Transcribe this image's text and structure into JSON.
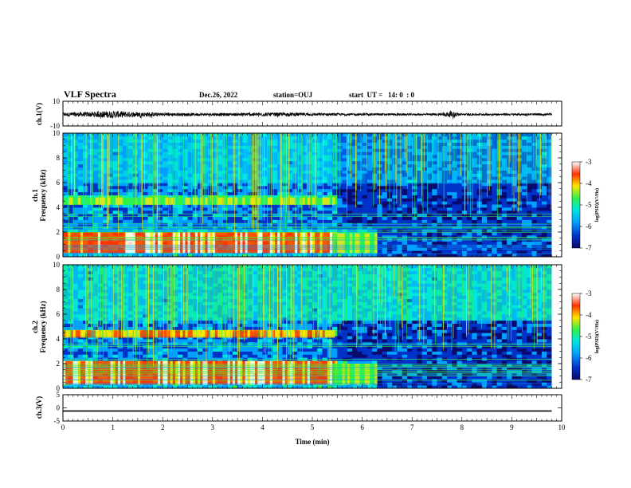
{
  "header": {
    "title": "VLF Spectra",
    "date": "Dec.26, 2022",
    "station": "station=OUJ",
    "start_ut": "start  UT =   14: 0  : 0"
  },
  "chart_data": [
    {
      "type": "line",
      "panel": "ch1-waveform",
      "ylabel": "ch.1(V)",
      "ylim": [
        -10,
        10
      ],
      "yticks": [
        10,
        -10
      ],
      "xlim": [
        0,
        10
      ],
      "note_values": "noisy waveform centered near 0 V, amplitude ~±1 V, larger bursts to ~±3 V before t=2.5 min and near t=7.8 min",
      "x": [
        0,
        0.5,
        1.0,
        1.5,
        2.0,
        2.5,
        3.0,
        3.5,
        4.0,
        4.5,
        5.0,
        5.5,
        6.0,
        6.5,
        7.0,
        7.5,
        7.8,
        8.0,
        8.5,
        9.0,
        9.5,
        9.8
      ],
      "y_envelope": [
        1.5,
        2.0,
        3.0,
        2.0,
        1.5,
        1.2,
        1.2,
        1.2,
        1.5,
        1.5,
        1.2,
        1.0,
        1.0,
        0.9,
        0.9,
        0.9,
        2.5,
        0.9,
        0.9,
        0.9,
        0.9,
        0.9
      ]
    },
    {
      "type": "heatmap",
      "panel": "ch1-spectrogram",
      "ylabel": "ch.1\nFrequency (kHz)",
      "ylim": [
        0,
        10
      ],
      "yticks": [
        0,
        2,
        4,
        6,
        8,
        10
      ],
      "xlim": [
        0,
        10
      ],
      "xticks": [
        0,
        1,
        2,
        3,
        4,
        5,
        6,
        7,
        8,
        9,
        10
      ],
      "colorbar": {
        "label": "log(PSD)(V²/Hz)",
        "range": [
          -7,
          -3
        ],
        "ticks": [
          -3,
          -4,
          -5,
          -6,
          -7
        ]
      },
      "data_end_min": 9.8,
      "features": [
        {
          "freq_kHz": [
            0.3,
            2.0
          ],
          "time_min": [
            0,
            5.4
          ],
          "level": -3.5
        },
        {
          "freq_kHz": [
            0.3,
            1.9
          ],
          "time_min": [
            5.4,
            6.25
          ],
          "level": -4.5
        },
        {
          "freq_kHz": [
            4.2,
            4.8
          ],
          "time_min": [
            0,
            5.4
          ],
          "level": -4.5
        },
        {
          "freq_kHz": [
            5.9,
            10.0
          ],
          "time_min": [
            0,
            9.8
          ],
          "level": -5.5
        }
      ]
    },
    {
      "type": "heatmap",
      "panel": "ch2-spectrogram",
      "ylabel": "ch.2\nFrequency (kHz)",
      "ylim": [
        0,
        10
      ],
      "yticks": [
        0,
        2,
        4,
        6,
        8,
        10
      ],
      "xlim": [
        0,
        10
      ],
      "xticks": [
        0,
        1,
        2,
        3,
        4,
        5,
        6,
        7,
        8,
        9,
        10
      ],
      "colorbar": {
        "label": "log(PSD)(V²/Hz)",
        "range": [
          -7,
          -3
        ],
        "ticks": [
          -3,
          -4,
          -5,
          -6,
          -7
        ]
      },
      "data_end_min": 9.8,
      "features": [
        {
          "freq_kHz": [
            0.3,
            2.2
          ],
          "time_min": [
            0,
            5.4
          ],
          "level": -3.5
        },
        {
          "freq_kHz": [
            0.3,
            2.0
          ],
          "time_min": [
            5.4,
            6.25
          ],
          "level": -4.5
        },
        {
          "freq_kHz": [
            4.1,
            4.7
          ],
          "time_min": [
            0,
            5.4
          ],
          "level": -3.8
        },
        {
          "freq_kHz": [
            5.5,
            10.0
          ],
          "time_min": [
            0,
            9.8
          ],
          "level": -5.0
        }
      ]
    },
    {
      "type": "line",
      "panel": "ch3-waveform",
      "ylabel": "ch.3(V)",
      "ylim": [
        -5,
        5
      ],
      "yticks": [
        5,
        0,
        -5
      ],
      "xlim": [
        0,
        10
      ],
      "xticks": [
        0,
        1,
        2,
        3,
        4,
        5,
        6,
        7,
        8,
        9,
        10
      ],
      "xlabel": "Time (min)",
      "x": [
        0,
        9.8
      ],
      "y": [
        -1.2,
        -1.2
      ]
    }
  ],
  "colors": {
    "colormap": [
      "#0a0a6e",
      "#0032c8",
      "#00a0ff",
      "#00e6dc",
      "#32f046",
      "#ffe600",
      "#ff3200",
      "#ffffff"
    ]
  }
}
